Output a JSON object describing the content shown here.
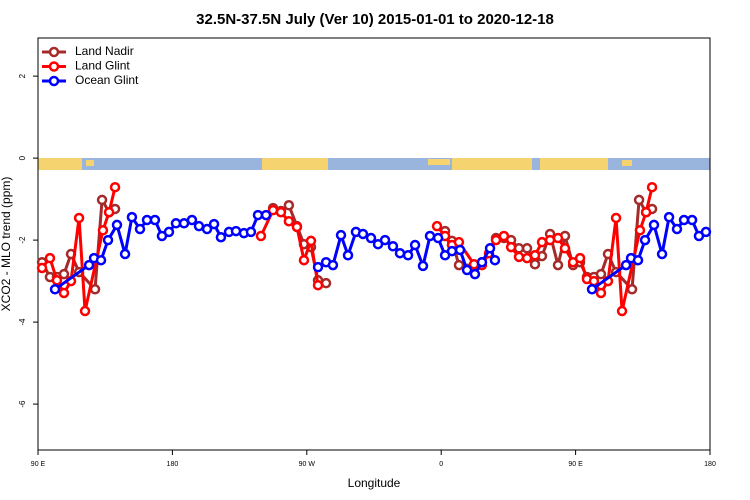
{
  "chart_data": {
    "type": "line",
    "title": "32.5N-37.5N July (Ver 10)   2015-01-01 to 2020-12-18",
    "x_label": "Longitude",
    "y_label": "XCO2 - MLO trend (ppm)",
    "xlim": [
      90,
      540
    ],
    "xticks": [
      {
        "value": 90,
        "label": "90 E"
      },
      {
        "value": 180,
        "label": "180"
      },
      {
        "value": 270,
        "label": "90 W"
      },
      {
        "value": 360,
        "label": "0"
      },
      {
        "value": 450,
        "label": "90 E"
      },
      {
        "value": 540,
        "label": "180"
      }
    ],
    "ylim": [
      -7.12,
      2.93
    ],
    "yticks": [
      2,
      0,
      -2,
      -4,
      -6
    ],
    "legend": "upper left",
    "series": [
      {
        "name": "Land Nadir",
        "color": "#a52a2a",
        "x": [
          92.7,
          98,
          102.7,
          107.4,
          112.1,
          117.5,
          128.2,
          132.9,
          137.6,
          141.6,
          null,
          247.4,
          252.7,
          258,
          263.4,
          268.1,
          272.8,
          277.5,
          282.9,
          null,
          362.6,
          367.2,
          371.9,
          382,
          387.3,
          396.7,
          402,
          406.8,
          412.1,
          417.5,
          422.8,
          427.5,
          432.9,
          438.2,
          442.9,
          448.3,
          453,
          457.6,
          462.3,
          467,
          471.7,
          477.1,
          487.8,
          492.5,
          497.2,
          501.2
        ],
        "values": [
          -2.54,
          -2.9,
          -2.9,
          -2.83,
          -2.34,
          -2.78,
          -3.2,
          -1.02,
          -1.32,
          -1.24,
          null,
          -1.22,
          -1.29,
          -1.15,
          -1.66,
          -2.1,
          -2.17,
          -2.98,
          -3.05,
          null,
          -1.78,
          -2.02,
          -2.61,
          -2.61,
          -2.54,
          -1.95,
          -1.95,
          -2.0,
          -2.2,
          -2.2,
          -2.59,
          -2.39,
          -1.85,
          -2.61,
          -1.9,
          -2.61,
          -2.54,
          -2.9,
          -2.9,
          -2.83,
          -2.34,
          -2.78,
          -3.2,
          -1.02,
          -1.32,
          -1.24
        ]
      },
      {
        "name": "Land Glint",
        "color": "#ff0000",
        "x": [
          92.7,
          98,
          102.7,
          107.4,
          112.1,
          117.5,
          121.5,
          133.5,
          137.6,
          141.6,
          null,
          239.3,
          247.4,
          252.7,
          258,
          263.4,
          268.1,
          272.8,
          277.5,
          null,
          357.2,
          362.6,
          367.2,
          371.9,
          382,
          387.3,
          392,
          396.7,
          402,
          406.8,
          412.1,
          417.5,
          422.8,
          427.5,
          432.9,
          438.2,
          442.9,
          448.3,
          453,
          457.6,
          462.3,
          467,
          471.7,
          477.1,
          481.1,
          493.1,
          497.2,
          501.2
        ],
        "values": [
          -2.68,
          -2.44,
          -2.98,
          -3.29,
          -3.0,
          -1.46,
          -3.73,
          -1.76,
          -1.32,
          -0.71,
          null,
          -1.9,
          -1.27,
          -1.32,
          -1.54,
          -1.68,
          -2.49,
          -2.02,
          -3.1,
          null,
          -1.66,
          -1.9,
          -2.12,
          -2.05,
          -2.59,
          -2.61,
          -2.32,
          -2.0,
          -1.9,
          -2.17,
          -2.41,
          -2.44,
          -2.37,
          -2.05,
          -2.0,
          -1.95,
          -2.2,
          -2.54,
          -2.44,
          -2.95,
          -3.0,
          -3.29,
          -3.0,
          -1.46,
          -3.73,
          -1.76,
          -1.32,
          -0.71
        ]
      },
      {
        "name": "Ocean Glint",
        "color": "#0000ff",
        "x": [
          101.4,
          124.2,
          127.5,
          132.2,
          136.9,
          142.9,
          148.3,
          152.9,
          158.3,
          163,
          168.3,
          173,
          177.7,
          182.4,
          187.8,
          193.1,
          197.8,
          203.2,
          207.9,
          212.5,
          217.9,
          222.6,
          227.9,
          232.6,
          237.3,
          242.7,
          null,
          277.5,
          282.9,
          287.5,
          292.9,
          297.6,
          302.9,
          307.6,
          313,
          317.7,
          322.4,
          327.7,
          332.4,
          337.8,
          342.5,
          347.8,
          352.5,
          357.9,
          362.6,
          367.2,
          372.6,
          377.3,
          382.6,
          387.3,
          392.7,
          396,
          null,
          461,
          483.8,
          487.1,
          491.8,
          496.5,
          502.5,
          507.9,
          512.6,
          517.9,
          522.6,
          528,
          532.6,
          537.3
        ],
        "values": [
          -3.2,
          -2.61,
          -2.44,
          -2.49,
          -2.0,
          -1.63,
          -2.34,
          -1.44,
          -1.73,
          -1.51,
          -1.51,
          -1.9,
          -1.8,
          -1.59,
          -1.59,
          -1.51,
          -1.66,
          -1.73,
          -1.61,
          -1.93,
          -1.8,
          -1.78,
          -1.83,
          -1.8,
          -1.39,
          -1.39,
          null,
          -2.66,
          -2.54,
          -2.61,
          -1.88,
          -2.37,
          -1.8,
          -1.85,
          -1.95,
          -2.1,
          -2.0,
          -2.15,
          -2.32,
          -2.37,
          -2.12,
          -2.63,
          -1.9,
          -1.95,
          -2.37,
          -2.27,
          -2.24,
          -2.73,
          -2.83,
          -2.54,
          -2.2,
          -2.49,
          null,
          -3.2,
          -2.61,
          -2.44,
          -2.49,
          -2.0,
          -1.63,
          -2.34,
          -1.44,
          -1.73,
          -1.51,
          -1.51,
          -1.9,
          -1.8
        ]
      }
    ]
  }
}
